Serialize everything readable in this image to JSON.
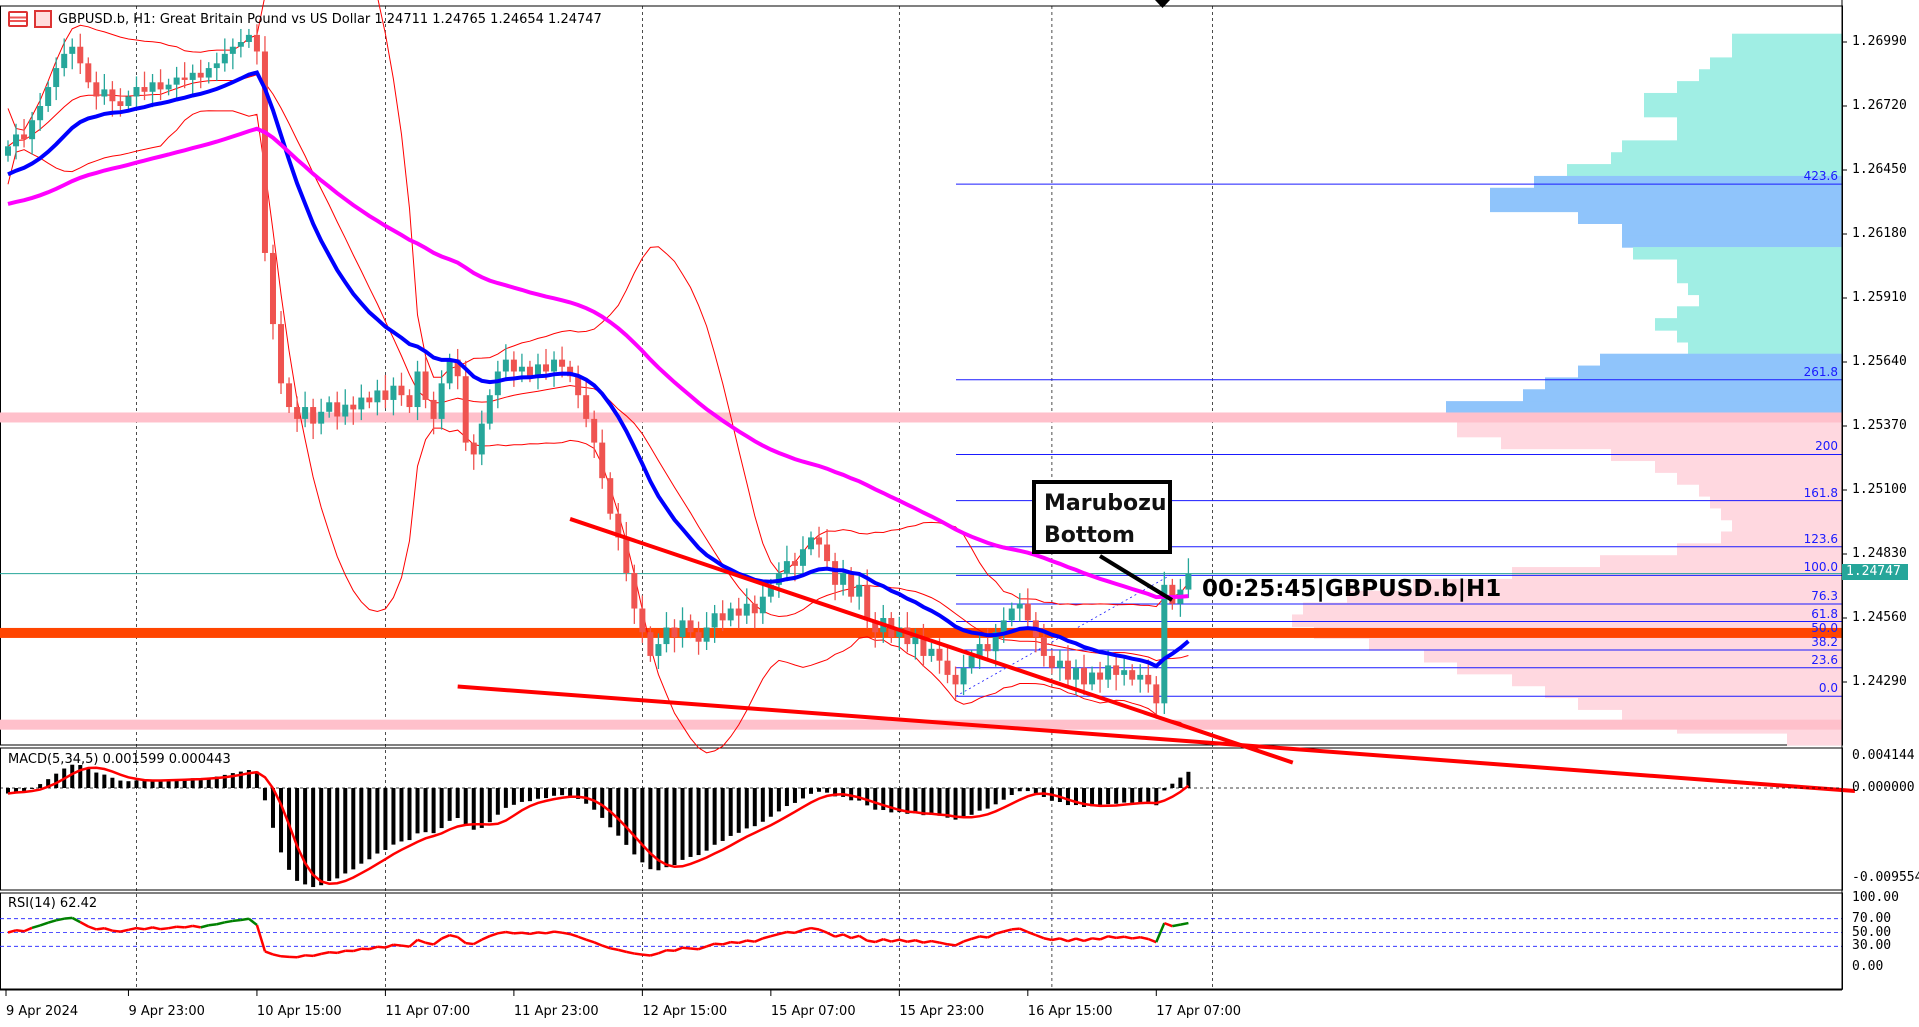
{
  "header": {
    "symbol": "GBPUSD.b",
    "timeframe": "H1",
    "description": "Great Britain Pound vs US Dollar",
    "title": "GBPUSD.b, H1:  Great Britain Pound vs US Dollar  1.24711 1.24765 1.24654 1.24747",
    "ohlc": {
      "open": 1.24711,
      "high": 1.24765,
      "low": 1.24654,
      "close": 1.24747
    }
  },
  "price_axis": [
    "1.26990",
    "1.26720",
    "1.26450",
    "1.26180",
    "1.25910",
    "1.25640",
    "1.25370",
    "1.25100",
    "1.24830",
    "1.24560",
    "1.24290"
  ],
  "current_price": "1.24747",
  "time_axis": [
    "9 Apr 2024",
    "9 Apr 23:00",
    "10 Apr 15:00",
    "11 Apr 07:00",
    "11 Apr 23:00",
    "12 Apr 15:00",
    "15 Apr 07:00",
    "15 Apr 23:00",
    "16 Apr 15:00",
    "17 Apr 07:00"
  ],
  "annotation": {
    "line1": "Marubozu",
    "line2": "Bottom"
  },
  "timer": "00:25:45|GBPUSD.b|H1",
  "macd": {
    "label": "MACD(5,34,5) 0.001599 0.000443",
    "axis": [
      "0.004144",
      "0.000000",
      "-0.009554"
    ],
    "range": [
      -0.009554,
      0.004144
    ]
  },
  "rsi": {
    "label": "RSI(14) 62.42",
    "axis": [
      "100.00",
      "70.00",
      "50.00",
      "30.00",
      "0.00"
    ],
    "levels": [
      70,
      50,
      30
    ]
  },
  "colors": {
    "bull": "#26a69a",
    "bear": "#ef5350",
    "ma_fast": "#0000ff",
    "ma_slow": "#ff00ff",
    "bands": "#ff0000",
    "trend": "#ff0000",
    "support": "#ff4500",
    "zone": "#ffc0cb",
    "fib": "#1a1aff",
    "vp_teal": "#a0eee4",
    "vp_blue": "#8fc4fb",
    "vp_pink": "#ffd8e0",
    "rsi_up": "#008000",
    "rsi_down": "#ff0000"
  },
  "chart_data": {
    "type": "candlestick",
    "price_range": [
      1.24024,
      1.27142
    ],
    "closes": [
      1.2655,
      1.266,
      1.2658,
      1.2666,
      1.2672,
      1.268,
      1.2688,
      1.2694,
      1.2697,
      1.269,
      1.2682,
      1.2676,
      1.2679,
      1.2674,
      1.2672,
      1.2676,
      1.268,
      1.2678,
      1.2682,
      1.2679,
      1.2681,
      1.2684,
      1.2683,
      1.2686,
      1.2684,
      1.2688,
      1.269,
      1.2694,
      1.2697,
      1.2699,
      1.2702,
      1.2695,
      1.261,
      1.258,
      1.2555,
      1.2545,
      1.254,
      1.2545,
      1.2538,
      1.2543,
      1.2547,
      1.2541,
      1.2546,
      1.2544,
      1.2549,
      1.2547,
      1.2552,
      1.2548,
      1.2554,
      1.255,
      1.2545,
      1.256,
      1.2548,
      1.254,
      1.2555,
      1.2565,
      1.2558,
      1.253,
      1.2525,
      1.2538,
      1.255,
      1.256,
      1.2565,
      1.256,
      1.2562,
      1.2558,
      1.2563,
      1.256,
      1.2565,
      1.2562,
      1.2558,
      1.255,
      1.254,
      1.253,
      1.2515,
      1.25,
      1.249,
      1.2475,
      1.246,
      1.245,
      1.244,
      1.2445,
      1.2452,
      1.2448,
      1.2455,
      1.245,
      1.2446,
      1.2452,
      1.2458,
      1.2455,
      1.246,
      1.2457,
      1.2462,
      1.2458,
      1.2465,
      1.247,
      1.2475,
      1.248,
      1.2478,
      1.2485,
      1.249,
      1.2487,
      1.248,
      1.247,
      1.2475,
      1.2465,
      1.247,
      1.2455,
      1.245,
      1.2456,
      1.2448,
      1.2452,
      1.2445,
      1.2448,
      1.244,
      1.2443,
      1.2438,
      1.2432,
      1.2428,
      1.2435,
      1.244,
      1.2445,
      1.2442,
      1.245,
      1.2455,
      1.246,
      1.2462,
      1.2455,
      1.2448,
      1.244,
      1.2435,
      1.2438,
      1.243,
      1.2435,
      1.2428,
      1.2433,
      1.243,
      1.2436,
      1.2432,
      1.2434,
      1.243,
      1.2432,
      1.2428,
      1.242,
      1.247,
      1.2462,
      1.2468,
      1.24747
    ],
    "horizontal_levels": {
      "support": 1.24497,
      "zone_upper": 1.25406,
      "zone_lower": 1.2411
    },
    "trendlines": [
      {
        "from": [
          70,
          1.24978
        ],
        "to": [
          160,
          1.2395
        ]
      },
      {
        "from": [
          56,
          1.24271
        ],
        "to": [
          230,
          1.2383
        ]
      }
    ],
    "fibonacci": {
      "p0": 1.2423,
      "p100": 1.2474,
      "levels": [
        "0.0",
        "23.6",
        "38.2",
        "50.0",
        "61.8",
        "76.3",
        "100.0",
        "123.6",
        "161.8",
        "200",
        "261.8",
        "423.6"
      ]
    },
    "volume_profile": [
      [
        1.27,
        20
      ],
      [
        1.2695,
        20
      ],
      [
        1.269,
        24
      ],
      [
        1.2685,
        26
      ],
      [
        1.268,
        30
      ],
      [
        1.2675,
        36
      ],
      [
        1.267,
        36
      ],
      [
        1.2665,
        30
      ],
      [
        1.266,
        30
      ],
      [
        1.2655,
        40
      ],
      [
        1.265,
        42
      ],
      [
        1.2645,
        50
      ],
      [
        1.264,
        56
      ],
      [
        1.2635,
        64
      ],
      [
        1.263,
        64
      ],
      [
        1.2625,
        48
      ],
      [
        1.262,
        40
      ],
      [
        1.2615,
        40
      ],
      [
        1.261,
        38
      ],
      [
        1.2605,
        30
      ],
      [
        1.26,
        30
      ],
      [
        1.2595,
        28
      ],
      [
        1.259,
        26
      ],
      [
        1.2585,
        30
      ],
      [
        1.258,
        34
      ],
      [
        1.2575,
        30
      ],
      [
        1.257,
        28
      ],
      [
        1.2565,
        44
      ],
      [
        1.256,
        48
      ],
      [
        1.2555,
        54
      ],
      [
        1.255,
        58
      ],
      [
        1.2545,
        72
      ],
      [
        1.254,
        70
      ],
      [
        1.2535,
        70
      ],
      [
        1.253,
        62
      ],
      [
        1.2525,
        42
      ],
      [
        1.252,
        34
      ],
      [
        1.2515,
        30
      ],
      [
        1.251,
        26
      ],
      [
        1.2505,
        24
      ],
      [
        1.25,
        22
      ],
      [
        1.2495,
        20
      ],
      [
        1.249,
        22
      ],
      [
        1.2485,
        30
      ],
      [
        1.248,
        44
      ],
      [
        1.2475,
        60
      ],
      [
        1.247,
        78
      ],
      [
        1.2465,
        90
      ],
      [
        1.246,
        98
      ],
      [
        1.2455,
        100
      ],
      [
        1.245,
        96
      ],
      [
        1.2445,
        86
      ],
      [
        1.244,
        76
      ],
      [
        1.2435,
        70
      ],
      [
        1.243,
        60
      ],
      [
        1.2425,
        54
      ],
      [
        1.242,
        48
      ],
      [
        1.2415,
        40
      ],
      [
        1.241,
        30
      ],
      [
        1.2405,
        10
      ]
    ]
  }
}
